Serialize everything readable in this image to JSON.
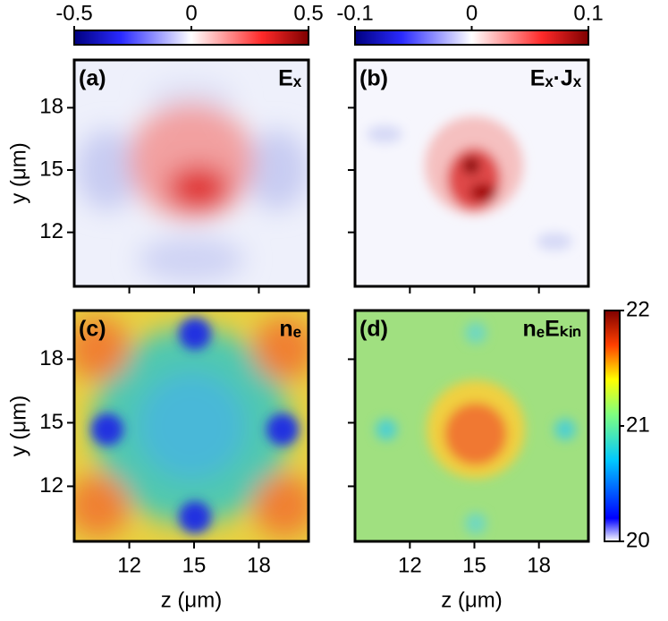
{
  "chart_data": [
    {
      "type": "heatmap",
      "panel_label": "(a)",
      "quantity": "Eₓ",
      "xlim": [
        9.45,
        20.3
      ],
      "ylim": [
        9.4,
        20.3
      ],
      "xticks": [
        12,
        15,
        18
      ],
      "yticks": [
        12,
        15,
        18
      ],
      "xtick_labels": false,
      "ytick_labels": true,
      "ylabel": "y (μm)",
      "colorbar": {
        "orientation": "horizontal",
        "colormap": "bwr",
        "lim": [
          -0.5,
          0.5
        ],
        "ticks": [
          -0.5,
          0,
          0.5
        ]
      }
    },
    {
      "type": "heatmap",
      "panel_label": "(b)",
      "quantity": "Eₓ·Jₓ",
      "xlim": [
        9.45,
        20.3
      ],
      "ylim": [
        9.4,
        20.3
      ],
      "xticks": [
        12,
        15,
        18
      ],
      "yticks": [
        12,
        15,
        18
      ],
      "xtick_labels": false,
      "ytick_labels": false,
      "colorbar": {
        "orientation": "horizontal",
        "colormap": "bwr",
        "lim": [
          -0.1,
          0.1
        ],
        "ticks": [
          -0.1,
          0,
          0.1
        ]
      }
    },
    {
      "type": "heatmap",
      "panel_label": "(c)",
      "quantity": "nₑ",
      "xlim": [
        9.45,
        20.3
      ],
      "ylim": [
        9.4,
        20.3
      ],
      "xticks": [
        12,
        15,
        18
      ],
      "yticks": [
        12,
        15,
        18
      ],
      "xtick_labels": true,
      "ytick_labels": true,
      "xlabel": "z (μm)",
      "ylabel": "y (μm)"
    },
    {
      "type": "heatmap",
      "panel_label": "(d)",
      "quantity": "nₑEₖᵢₙ",
      "xlim": [
        9.45,
        20.3
      ],
      "ylim": [
        9.4,
        20.3
      ],
      "xticks": [
        12,
        15,
        18
      ],
      "yticks": [
        12,
        15,
        18
      ],
      "xtick_labels": true,
      "ytick_labels": false,
      "xlabel": "z (μm)",
      "colorbar": {
        "orientation": "vertical",
        "colormap": "jet",
        "lim": [
          20,
          22
        ],
        "ticks": [
          20,
          21,
          22
        ]
      }
    }
  ]
}
